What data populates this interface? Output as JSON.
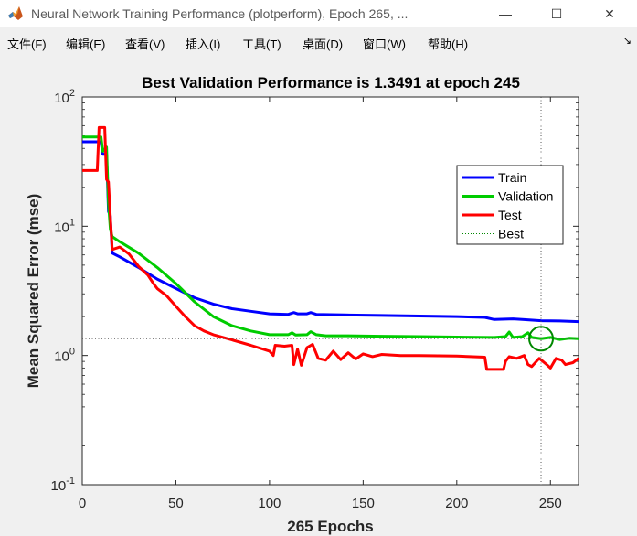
{
  "window": {
    "title": "Neural Network Training Performance (plotperform), Epoch 265, ...",
    "controls": {
      "minimize": "—",
      "maximize": "☐",
      "close": "✕"
    }
  },
  "menu": {
    "items": [
      "文件(F)",
      "编辑(E)",
      "查看(V)",
      "插入(I)",
      "工具(T)",
      "桌面(D)",
      "窗口(W)",
      "帮助(H)"
    ],
    "overflow": "↘"
  },
  "colors": {
    "train": "#0000ff",
    "validation": "#00cc00",
    "test": "#ff0000",
    "best": "#008800"
  },
  "chart_data": {
    "type": "line",
    "title": "Best Validation Performance is 1.3491 at epoch 245",
    "xlabel": "265 Epochs",
    "ylabel": "Mean Squared Error  (mse)",
    "xlim": [
      0,
      265
    ],
    "ylim": [
      0.1,
      100
    ],
    "yscale": "log",
    "grid": false,
    "legend_position": "top-right",
    "x_ticks": [
      "0",
      "50",
      "100",
      "150",
      "200",
      "250"
    ],
    "x_tick_values": [
      0,
      50,
      100,
      150,
      200,
      250
    ],
    "y_ticks": [
      {
        "base": "10",
        "exp": "-1",
        "value": 0.1
      },
      {
        "base": "10",
        "exp": "0",
        "value": 1
      },
      {
        "base": "10",
        "exp": "1",
        "value": 10
      },
      {
        "base": "10",
        "exp": "2",
        "value": 100
      }
    ],
    "best": {
      "epoch": 245,
      "value": 1.3491,
      "label": "Best"
    },
    "series": [
      {
        "name": "Train",
        "key": "train",
        "points": [
          [
            0,
            45
          ],
          [
            10,
            45
          ],
          [
            11,
            36
          ],
          [
            13,
            36
          ],
          [
            14,
            13
          ],
          [
            15,
            12
          ],
          [
            16,
            6.2
          ],
          [
            20,
            5.8
          ],
          [
            30,
            4.8
          ],
          [
            40,
            3.9
          ],
          [
            50,
            3.3
          ],
          [
            60,
            2.8
          ],
          [
            70,
            2.5
          ],
          [
            80,
            2.3
          ],
          [
            90,
            2.2
          ],
          [
            100,
            2.1
          ],
          [
            110,
            2.08
          ],
          [
            113,
            2.15
          ],
          [
            115,
            2.1
          ],
          [
            120,
            2.1
          ],
          [
            122,
            2.15
          ],
          [
            125,
            2.08
          ],
          [
            140,
            2.06
          ],
          [
            160,
            2.04
          ],
          [
            180,
            2.02
          ],
          [
            200,
            2.0
          ],
          [
            215,
            1.97
          ],
          [
            220,
            1.9
          ],
          [
            230,
            1.92
          ],
          [
            235,
            1.9
          ],
          [
            245,
            1.86
          ],
          [
            255,
            1.85
          ],
          [
            265,
            1.83
          ]
        ]
      },
      {
        "name": "Validation",
        "key": "validation",
        "points": [
          [
            0,
            49
          ],
          [
            10,
            49
          ],
          [
            11,
            38
          ],
          [
            13,
            41
          ],
          [
            14,
            15
          ],
          [
            15,
            9.5
          ],
          [
            16,
            8.3
          ],
          [
            20,
            7.6
          ],
          [
            30,
            6.2
          ],
          [
            40,
            4.8
          ],
          [
            50,
            3.6
          ],
          [
            60,
            2.6
          ],
          [
            70,
            2.0
          ],
          [
            80,
            1.7
          ],
          [
            90,
            1.55
          ],
          [
            100,
            1.45
          ],
          [
            110,
            1.45
          ],
          [
            112,
            1.5
          ],
          [
            114,
            1.44
          ],
          [
            120,
            1.45
          ],
          [
            122,
            1.53
          ],
          [
            125,
            1.45
          ],
          [
            130,
            1.42
          ],
          [
            140,
            1.42
          ],
          [
            160,
            1.41
          ],
          [
            180,
            1.4
          ],
          [
            200,
            1.39
          ],
          [
            220,
            1.38
          ],
          [
            226,
            1.4
          ],
          [
            228,
            1.52
          ],
          [
            230,
            1.38
          ],
          [
            235,
            1.4
          ],
          [
            238,
            1.5
          ],
          [
            240,
            1.38
          ],
          [
            245,
            1.35
          ],
          [
            250,
            1.38
          ],
          [
            255,
            1.33
          ],
          [
            260,
            1.36
          ],
          [
            265,
            1.35
          ]
        ]
      },
      {
        "name": "Test",
        "key": "test",
        "points": [
          [
            0,
            27
          ],
          [
            8,
            27
          ],
          [
            9,
            58
          ],
          [
            12,
            58
          ],
          [
            13,
            23
          ],
          [
            14,
            22
          ],
          [
            15,
            12
          ],
          [
            16,
            6.6
          ],
          [
            20,
            6.9
          ],
          [
            25,
            6.1
          ],
          [
            30,
            4.9
          ],
          [
            35,
            4.2
          ],
          [
            38,
            3.6
          ],
          [
            40,
            3.3
          ],
          [
            45,
            2.9
          ],
          [
            50,
            2.4
          ],
          [
            55,
            2.0
          ],
          [
            60,
            1.7
          ],
          [
            65,
            1.55
          ],
          [
            70,
            1.45
          ],
          [
            80,
            1.32
          ],
          [
            90,
            1.2
          ],
          [
            100,
            1.08
          ],
          [
            102,
            1.0
          ],
          [
            103,
            1.2
          ],
          [
            108,
            1.18
          ],
          [
            112,
            1.2
          ],
          [
            113,
            0.85
          ],
          [
            115,
            1.12
          ],
          [
            117,
            0.84
          ],
          [
            120,
            1.15
          ],
          [
            123,
            1.22
          ],
          [
            126,
            0.95
          ],
          [
            130,
            0.92
          ],
          [
            134,
            1.08
          ],
          [
            138,
            0.93
          ],
          [
            142,
            1.05
          ],
          [
            146,
            0.94
          ],
          [
            150,
            1.03
          ],
          [
            155,
            0.98
          ],
          [
            160,
            1.02
          ],
          [
            170,
            1.0
          ],
          [
            180,
            1.0
          ],
          [
            200,
            0.99
          ],
          [
            215,
            0.97
          ],
          [
            216,
            0.78
          ],
          [
            225,
            0.78
          ],
          [
            226,
            0.9
          ],
          [
            228,
            0.98
          ],
          [
            232,
            0.95
          ],
          [
            236,
            1.0
          ],
          [
            238,
            0.85
          ],
          [
            240,
            0.82
          ],
          [
            244,
            0.95
          ],
          [
            248,
            0.85
          ],
          [
            250,
            0.8
          ],
          [
            253,
            0.95
          ],
          [
            256,
            0.92
          ],
          [
            258,
            0.85
          ],
          [
            262,
            0.88
          ],
          [
            265,
            0.95
          ]
        ]
      }
    ]
  }
}
